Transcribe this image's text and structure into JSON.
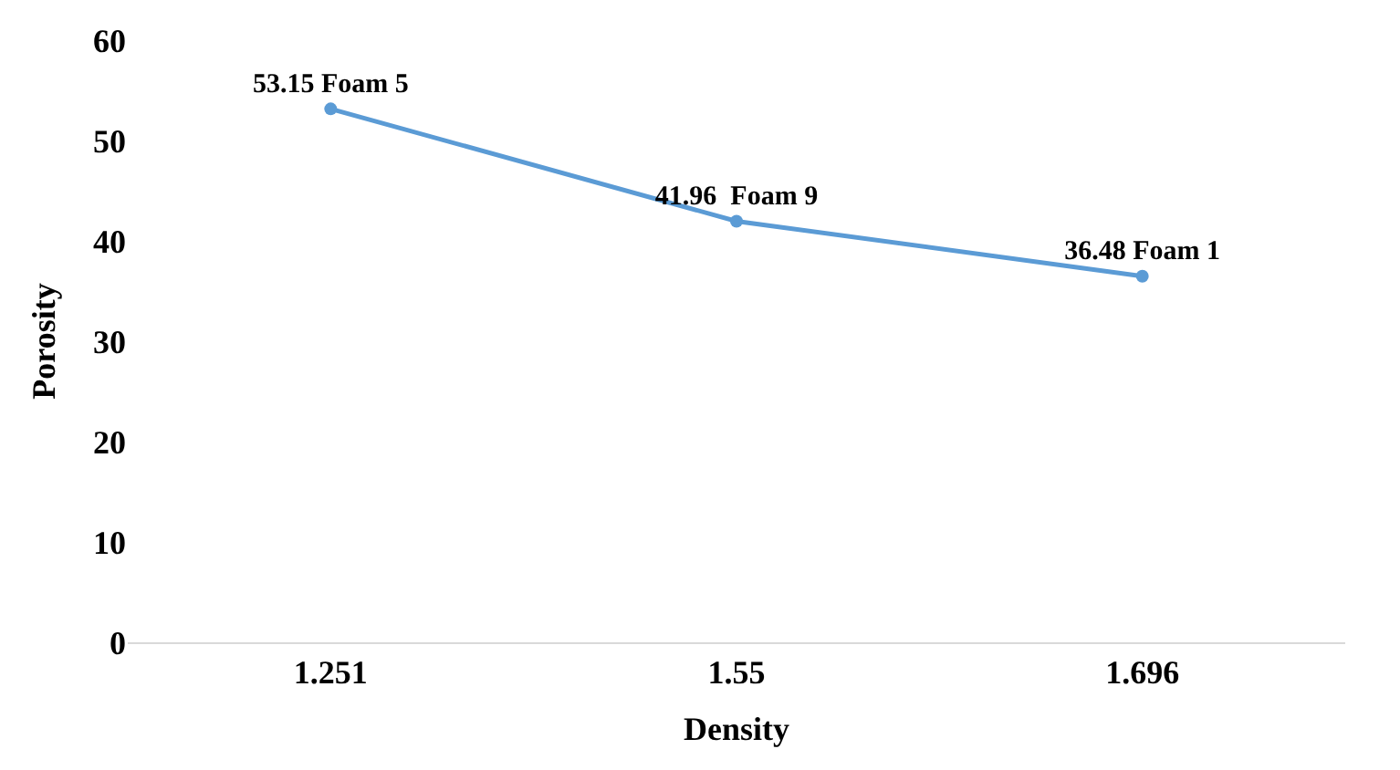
{
  "chart_data": {
    "type": "line",
    "xlabel": "Density",
    "ylabel": "Porosity",
    "categories": [
      "1.251",
      "1.55",
      "1.696"
    ],
    "series": [
      {
        "color": "#5b9bd5",
        "values": [
          53.15,
          41.96,
          36.48
        ],
        "value_labels": [
          "53.15 Foam 5",
          "41.96  Foam 9",
          "36.48 Foam 1"
        ]
      }
    ],
    "ylim": [
      0,
      60
    ],
    "yticks": [
      0,
      10,
      20,
      30,
      40,
      50,
      60
    ],
    "grid": false,
    "legend": false,
    "marker": "circle",
    "line_style": "solid"
  }
}
